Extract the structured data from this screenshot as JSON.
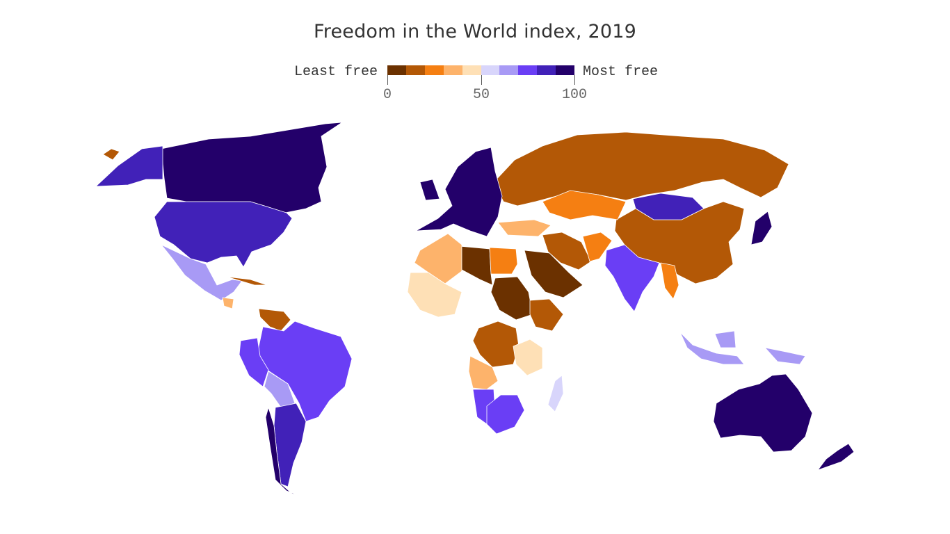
{
  "title": "Freedom in the World index, 2019",
  "legend": {
    "min_label": "Least free",
    "max_label": "Most free",
    "ticks": [
      "0",
      "50",
      "100"
    ],
    "tick_values": [
      0,
      50,
      100
    ],
    "scale_min": 0,
    "scale_max": 100,
    "colors": [
      "#6b3100",
      "#b35806",
      "#f57f12",
      "#fdb36b",
      "#fee0b6",
      "#d8d5fb",
      "#a89af5",
      "#6a3ef5",
      "#4121b8",
      "#23006a"
    ]
  },
  "map_data": {
    "type": "choropleth",
    "regions": [
      {
        "name": "Canada",
        "band": 10
      },
      {
        "name": "United States",
        "band": 9
      },
      {
        "name": "Mexico",
        "band": 7
      },
      {
        "name": "Cuba",
        "band": 2
      },
      {
        "name": "Nicaragua",
        "band": 4
      },
      {
        "name": "Venezuela",
        "band": 2
      },
      {
        "name": "Brazil",
        "band": 8
      },
      {
        "name": "Peru",
        "band": 8
      },
      {
        "name": "Bolivia",
        "band": 7
      },
      {
        "name": "Argentina",
        "band": 9
      },
      {
        "name": "Chile",
        "band": 10
      },
      {
        "name": "Greenland",
        "band": 2
      },
      {
        "name": "Alaska",
        "band": 9
      },
      {
        "name": "Russia",
        "band": 2
      },
      {
        "name": "China",
        "band": 2
      },
      {
        "name": "Mongolia",
        "band": 9
      },
      {
        "name": "Kazakhstan",
        "band": 3
      },
      {
        "name": "India",
        "band": 8
      },
      {
        "name": "Iran",
        "band": 2
      },
      {
        "name": "Saudi Arabia",
        "band": 1
      },
      {
        "name": "Libya",
        "band": 1
      },
      {
        "name": "Egypt",
        "band": 3
      },
      {
        "name": "Algeria",
        "band": 4
      },
      {
        "name": "Mali",
        "band": 5
      },
      {
        "name": "Sudan",
        "band": 1
      },
      {
        "name": "Ethiopia",
        "band": 2
      },
      {
        "name": "DR Congo",
        "band": 2
      },
      {
        "name": "Angola",
        "band": 4
      },
      {
        "name": "Tanzania",
        "band": 5
      },
      {
        "name": "Namibia",
        "band": 8
      },
      {
        "name": "South Africa",
        "band": 8
      },
      {
        "name": "Madagascar",
        "band": 6
      },
      {
        "name": "Europe",
        "band": 10
      },
      {
        "name": "Turkey",
        "band": 4
      },
      {
        "name": "Indonesia",
        "band": 7
      },
      {
        "name": "Australia",
        "band": 10
      },
      {
        "name": "New Zealand",
        "band": 10
      },
      {
        "name": "Japan",
        "band": 10
      },
      {
        "name": "Myanmar",
        "band": 3
      },
      {
        "name": "Afghanistan",
        "band": 3
      }
    ]
  }
}
